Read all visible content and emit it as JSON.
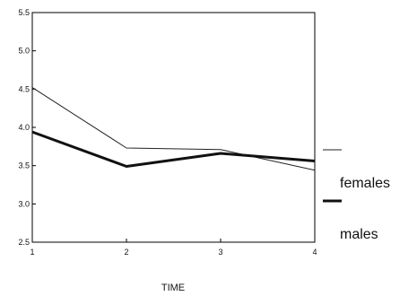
{
  "chart_data": {
    "type": "line",
    "title": "",
    "xlabel": "TIME",
    "ylabel": "",
    "x": [
      1,
      2,
      3,
      4
    ],
    "xticks": [
      "1",
      "2",
      "3",
      "4"
    ],
    "yticks": [
      "2.5",
      "3.0",
      "3.5",
      "4.0",
      "4.5",
      "5.0",
      "5.5"
    ],
    "ylim": [
      2.5,
      5.5
    ],
    "grid": false,
    "legend_position": "right",
    "series": [
      {
        "name": "females",
        "values": [
          4.52,
          3.73,
          3.71,
          3.44
        ],
        "color": "#222222",
        "style": "thin"
      },
      {
        "name": "males",
        "values": [
          3.94,
          3.49,
          3.66,
          3.56
        ],
        "color": "#111111",
        "style": "bold"
      }
    ]
  }
}
